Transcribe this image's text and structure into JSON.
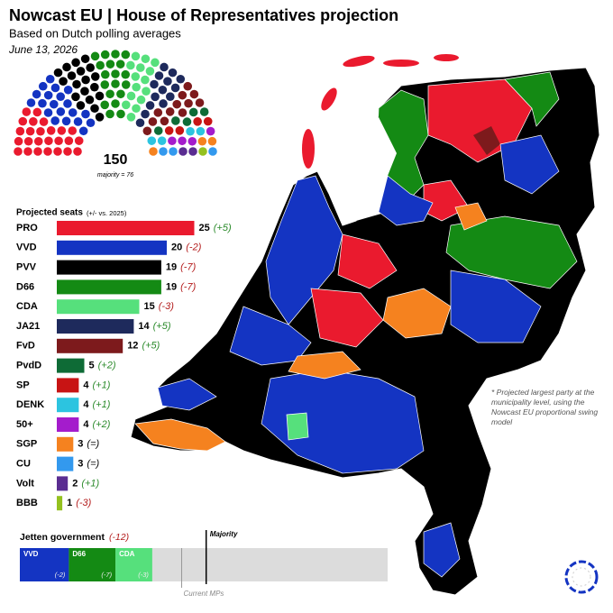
{
  "header": {
    "title": "Nowcast EU | House of Representatives projection",
    "subtitle": "Based on Dutch polling averages",
    "date": "June 13, 2026"
  },
  "chart_data": [
    {
      "type": "hemicycle",
      "total": 150,
      "majority_label": "majority = 76"
    },
    {
      "type": "bar",
      "title": "Projected seats",
      "subtitle": "(+/- vs. 2025)",
      "categories": [
        "PRO",
        "VVD",
        "PVV",
        "D66",
        "CDA",
        "JA21",
        "FvD",
        "PvdD",
        "SP",
        "DENK",
        "50+",
        "SGP",
        "CU",
        "Volt",
        "BBB"
      ],
      "values": [
        25,
        20,
        19,
        19,
        15,
        14,
        12,
        5,
        4,
        4,
        4,
        3,
        3,
        2,
        1
      ],
      "colors": [
        "#ea1a2e",
        "#1434c2",
        "#000000",
        "#148a14",
        "#56e07c",
        "#1e2a5c",
        "#7d1a1c",
        "#0e6b36",
        "#c81414",
        "#2cc4e0",
        "#a41ccc",
        "#f5821f",
        "#3399ee",
        "#5a2d91",
        "#94c11f"
      ],
      "change_labels": [
        "(+5)",
        "(-2)",
        "(-7)",
        "(-7)",
        "(-3)",
        "(+5)",
        "(+5)",
        "(+2)",
        "(+1)",
        "(+1)",
        "(+2)",
        "(=)",
        "(=)",
        "(+1)",
        "(-3)"
      ]
    },
    {
      "type": "stacked_bar",
      "title": "Jetten government",
      "change_label": "(-12)",
      "categories": [
        "VVD",
        "D66",
        "CDA"
      ],
      "values": [
        20,
        19,
        15
      ],
      "colors": [
        "#1434c2",
        "#148a14",
        "#56e07c"
      ],
      "change_labels": [
        "(-2)",
        "(-7)",
        "(-3)"
      ],
      "xlim": [
        0,
        150
      ],
      "majority": {
        "value": 76,
        "label": "Majority"
      },
      "current": {
        "value": 66,
        "label": "Current MPs"
      }
    }
  ],
  "map": {
    "note": "* Projected largest party at the municipality level, using the Nowcast EU proportional swing model"
  }
}
